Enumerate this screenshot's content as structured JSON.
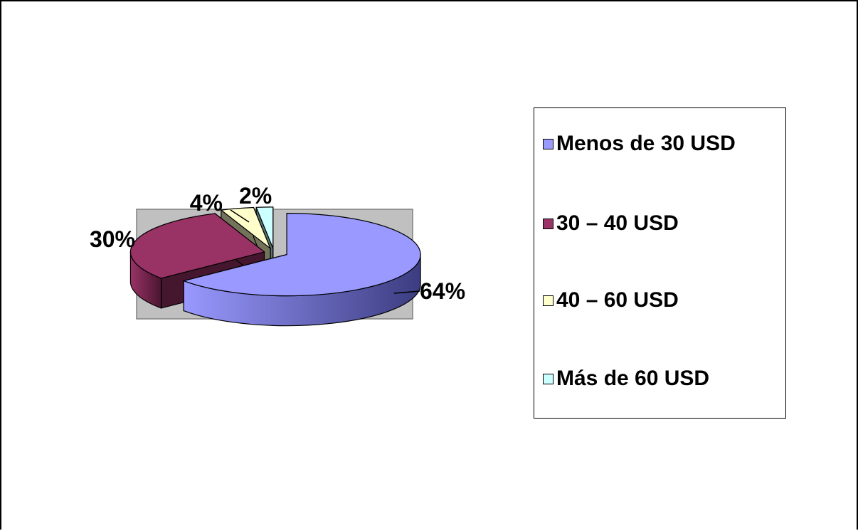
{
  "chart_data": {
    "type": "pie",
    "style": "3d-exploded",
    "plot_area_background": "#c0c0c0",
    "legend_position": "right",
    "categories": [
      "Menos de 30 USD",
      "30 – 40 USD",
      "40 – 60 USD",
      "Más de 60 USD"
    ],
    "values": [
      64,
      30,
      4,
      2
    ],
    "data_labels": [
      "64%",
      "30%",
      "4%",
      "2%"
    ],
    "colors": [
      "#9999ff",
      "#993366",
      "#ffffcc",
      "#ccffff"
    ],
    "side_colors": [
      "#3c3c80",
      "#4a1530",
      "#6f6f55",
      "#5f8080"
    ]
  }
}
